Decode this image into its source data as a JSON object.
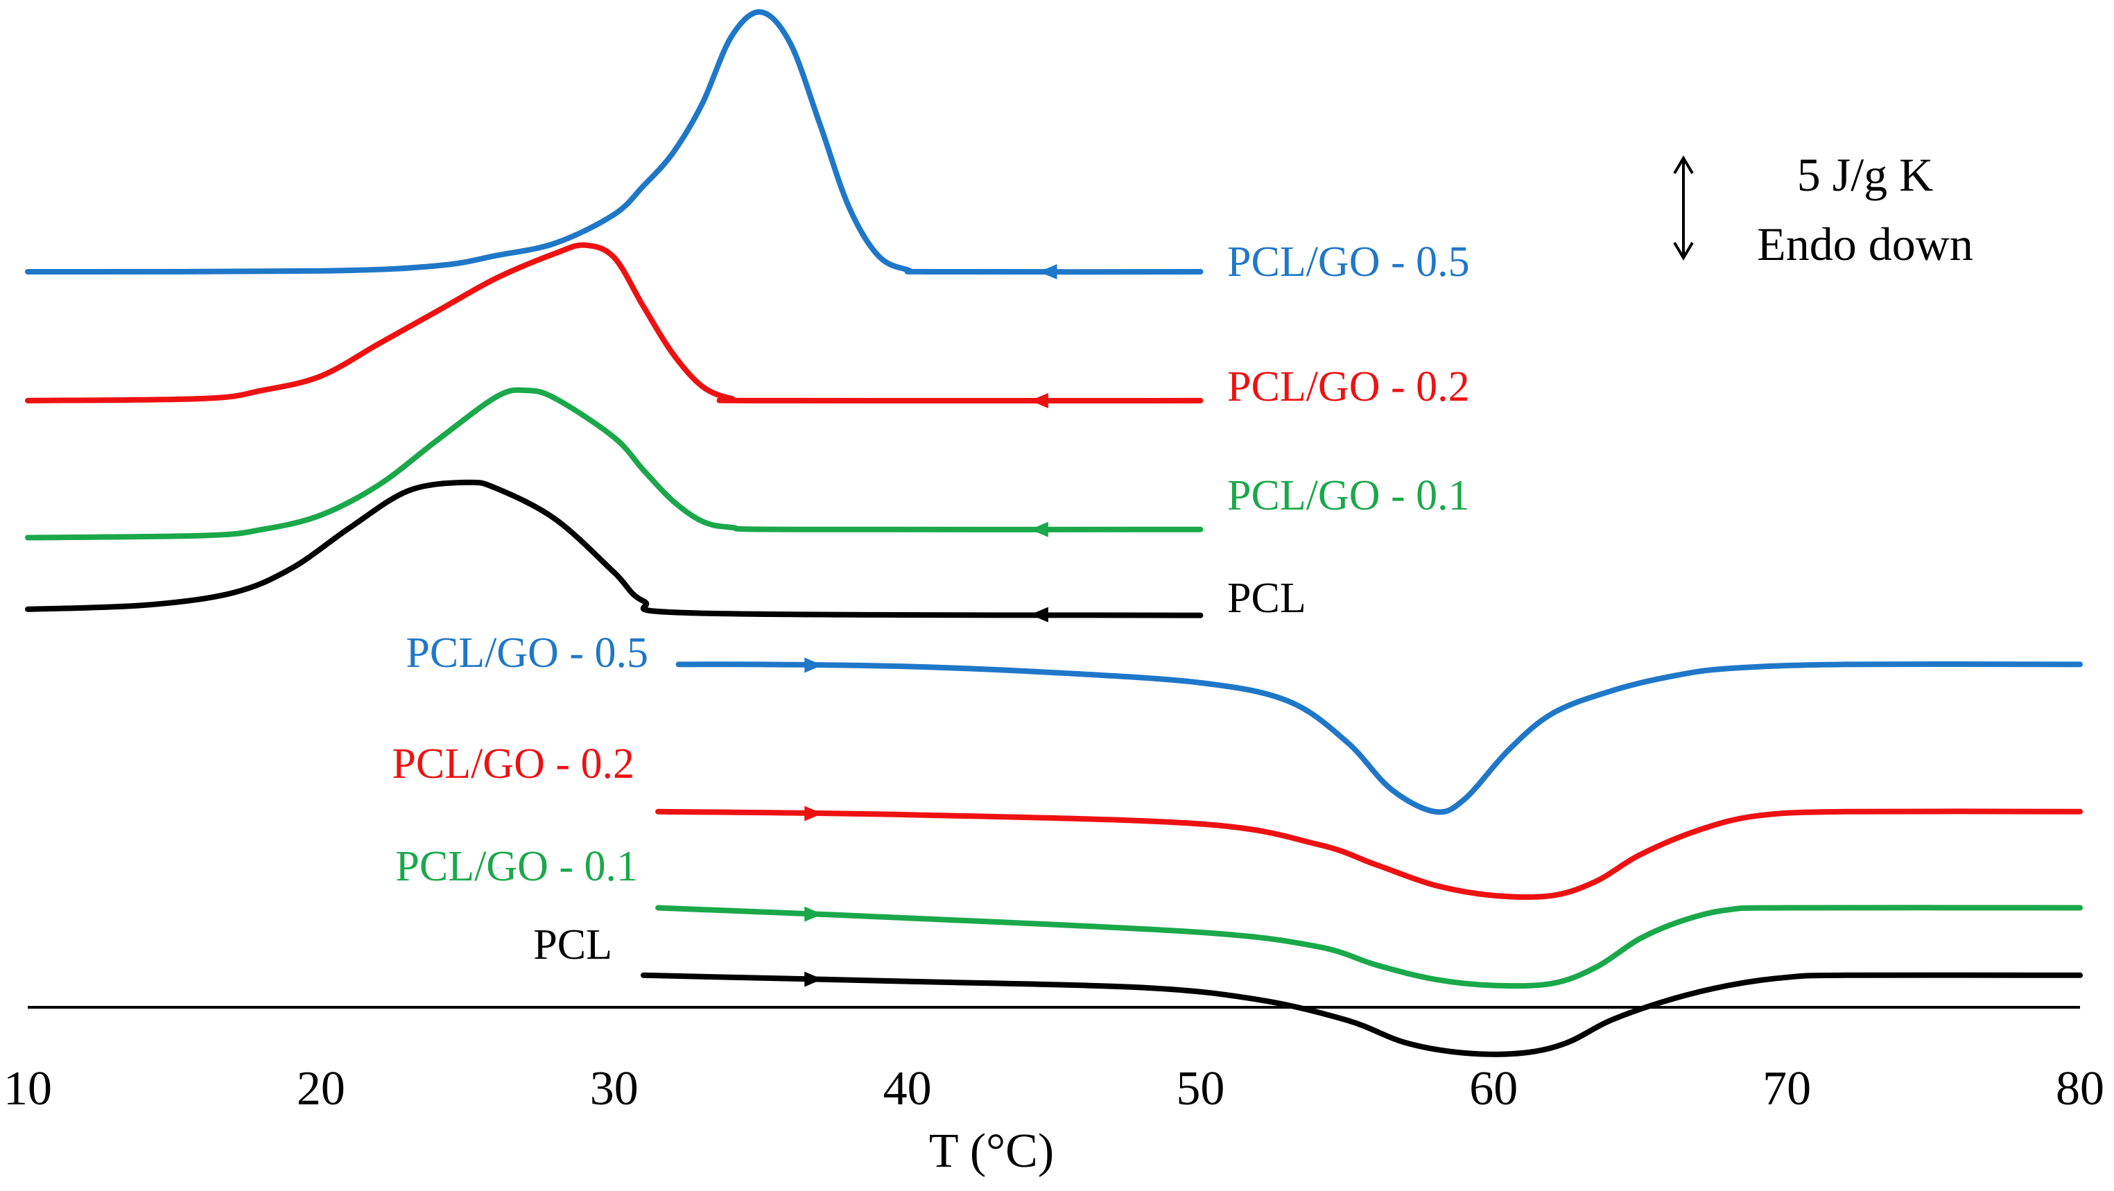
{
  "chart_data": {
    "type": "line",
    "title": "",
    "xlabel": "T (°C)",
    "ylabel": "",
    "xlim": [
      10,
      80
    ],
    "x_ticks": [
      "10",
      "20",
      "30",
      "40",
      "50",
      "60",
      "70",
      "80"
    ],
    "y_ticks": [],
    "grid": false,
    "colors": {
      "PCL/GO - 0.5": "#1f77c8",
      "PCL/GO - 0.2": "#ee1111",
      "PCL/GO - 0.1": "#1aa84a",
      "PCL": "#000000"
    },
    "scale_bar": {
      "line1": "5 J/g K",
      "line2": "Endo down",
      "magnitude_j_per_gK": 5
    },
    "series": [
      {
        "name": "PCL/GO - 0.5",
        "segment": "cooling",
        "label": "PCL/GO - 0.5",
        "color": "#1f77c8",
        "arrow_x": 44.8,
        "offset": 0,
        "points": [
          [
            10,
            0
          ],
          [
            20,
            0.04
          ],
          [
            24,
            0.3
          ],
          [
            26,
            0.8
          ],
          [
            28,
            1.4
          ],
          [
            30,
            2.8
          ],
          [
            31,
            4.2
          ],
          [
            32,
            5.8
          ],
          [
            33,
            8.2
          ],
          [
            34,
            11.5
          ],
          [
            35,
            12.7
          ],
          [
            36,
            11.2
          ],
          [
            37,
            7.3
          ],
          [
            38,
            3.2
          ],
          [
            39,
            0.8
          ],
          [
            40,
            0.1
          ],
          [
            41,
            0
          ],
          [
            50,
            0
          ]
        ]
      },
      {
        "name": "PCL/GO - 0.2",
        "segment": "cooling",
        "label": "PCL/GO - 0.2",
        "color": "#ee1111",
        "arrow_x": 44.5,
        "offset": -6.3,
        "points": [
          [
            10,
            0
          ],
          [
            16,
            0.1
          ],
          [
            18,
            0.5
          ],
          [
            20,
            1.2
          ],
          [
            22,
            2.8
          ],
          [
            24,
            4.4
          ],
          [
            26,
            6.0
          ],
          [
            28,
            7.2
          ],
          [
            29,
            7.6
          ],
          [
            30,
            7.0
          ],
          [
            31,
            4.6
          ],
          [
            32,
            2.3
          ],
          [
            33,
            0.7
          ],
          [
            34,
            0.1
          ],
          [
            35,
            0
          ],
          [
            50,
            0
          ]
        ]
      },
      {
        "name": "PCL/GO - 0.1",
        "segment": "cooling",
        "label": "PCL/GO - 0.1",
        "color": "#1aa84a",
        "arrow_x": 44.5,
        "offset": -13.0,
        "points": [
          [
            10,
            0
          ],
          [
            16,
            0.1
          ],
          [
            18,
            0.4
          ],
          [
            20,
            1.1
          ],
          [
            22,
            2.6
          ],
          [
            24,
            4.8
          ],
          [
            26,
            6.9
          ],
          [
            27,
            7.2
          ],
          [
            28,
            6.8
          ],
          [
            30,
            4.9
          ],
          [
            31,
            3.3
          ],
          [
            32,
            1.8
          ],
          [
            33,
            0.8
          ],
          [
            34,
            0.5
          ],
          [
            36,
            0.4
          ],
          [
            50,
            0.4
          ]
        ]
      },
      {
        "name": "PCL",
        "segment": "cooling",
        "label": "PCL",
        "color": "#000000",
        "arrow_x": 44.5,
        "offset": -16.5,
        "points": [
          [
            10,
            0
          ],
          [
            14,
            0.2
          ],
          [
            17,
            0.8
          ],
          [
            19,
            2.0
          ],
          [
            21,
            4.0
          ],
          [
            23,
            5.8
          ],
          [
            25,
            6.2
          ],
          [
            26,
            5.9
          ],
          [
            28,
            4.4
          ],
          [
            30,
            1.8
          ],
          [
            31,
            0.4
          ],
          [
            33,
            -0.2
          ],
          [
            50,
            -0.3
          ]
        ]
      },
      {
        "name": "PCL/GO - 0.5",
        "segment": "heating",
        "label": "PCL/GO - 0.5",
        "color": "#1f77c8",
        "arrow_x": 36.8,
        "offset": -19.2,
        "points": [
          [
            32.2,
            0
          ],
          [
            35,
            0
          ],
          [
            40,
            -0.1
          ],
          [
            45,
            -0.4
          ],
          [
            50,
            -0.9
          ],
          [
            53,
            -1.8
          ],
          [
            55,
            -3.8
          ],
          [
            56.5,
            -6.1
          ],
          [
            58,
            -7.2
          ],
          [
            59,
            -6.6
          ],
          [
            60.5,
            -4.2
          ],
          [
            62,
            -2.4
          ],
          [
            64,
            -1.3
          ],
          [
            66,
            -0.6
          ],
          [
            68,
            -0.2
          ],
          [
            72,
            0
          ],
          [
            80,
            0
          ]
        ]
      },
      {
        "name": "PCL/GO - 0.2",
        "segment": "heating",
        "label": "PCL/GO - 0.2",
        "color": "#ee1111",
        "arrow_x": 36.8,
        "offset": -26.4,
        "points": [
          [
            31.5,
            0
          ],
          [
            40,
            -0.15
          ],
          [
            50,
            -0.6
          ],
          [
            54,
            -1.6
          ],
          [
            56,
            -2.6
          ],
          [
            58,
            -3.6
          ],
          [
            60,
            -4.1
          ],
          [
            62,
            -4.1
          ],
          [
            63.5,
            -3.4
          ],
          [
            65,
            -2.1
          ],
          [
            67,
            -0.9
          ],
          [
            69,
            -0.2
          ],
          [
            72,
            0
          ],
          [
            80,
            0
          ]
        ]
      },
      {
        "name": "PCL/GO - 0.1",
        "segment": "heating",
        "label": "PCL/GO - 0.1",
        "color": "#1aa84a",
        "arrow_x": 36.8,
        "offset": -31.1,
        "points": [
          [
            31.5,
            0
          ],
          [
            40,
            -0.5
          ],
          [
            50,
            -1.2
          ],
          [
            54,
            -1.9
          ],
          [
            56,
            -2.8
          ],
          [
            58,
            -3.5
          ],
          [
            60,
            -3.8
          ],
          [
            62,
            -3.7
          ],
          [
            63.5,
            -2.9
          ],
          [
            65,
            -1.5
          ],
          [
            66.5,
            -0.6
          ],
          [
            68,
            -0.1
          ],
          [
            70,
            0
          ],
          [
            80,
            0
          ]
        ]
      },
      {
        "name": "PCL",
        "segment": "heating",
        "label": "PCL",
        "color": "#000000",
        "arrow_x": 36.8,
        "offset": -34.4,
        "points": [
          [
            31,
            0
          ],
          [
            40,
            -0.3
          ],
          [
            48,
            -0.6
          ],
          [
            52,
            -1.2
          ],
          [
            55,
            -2.2
          ],
          [
            57,
            -3.3
          ],
          [
            59,
            -3.8
          ],
          [
            61,
            -3.8
          ],
          [
            62.5,
            -3.3
          ],
          [
            64,
            -2.2
          ],
          [
            66,
            -1.2
          ],
          [
            68,
            -0.5
          ],
          [
            70,
            -0.1
          ],
          [
            72,
            0
          ],
          [
            80,
            0
          ]
        ]
      }
    ]
  }
}
